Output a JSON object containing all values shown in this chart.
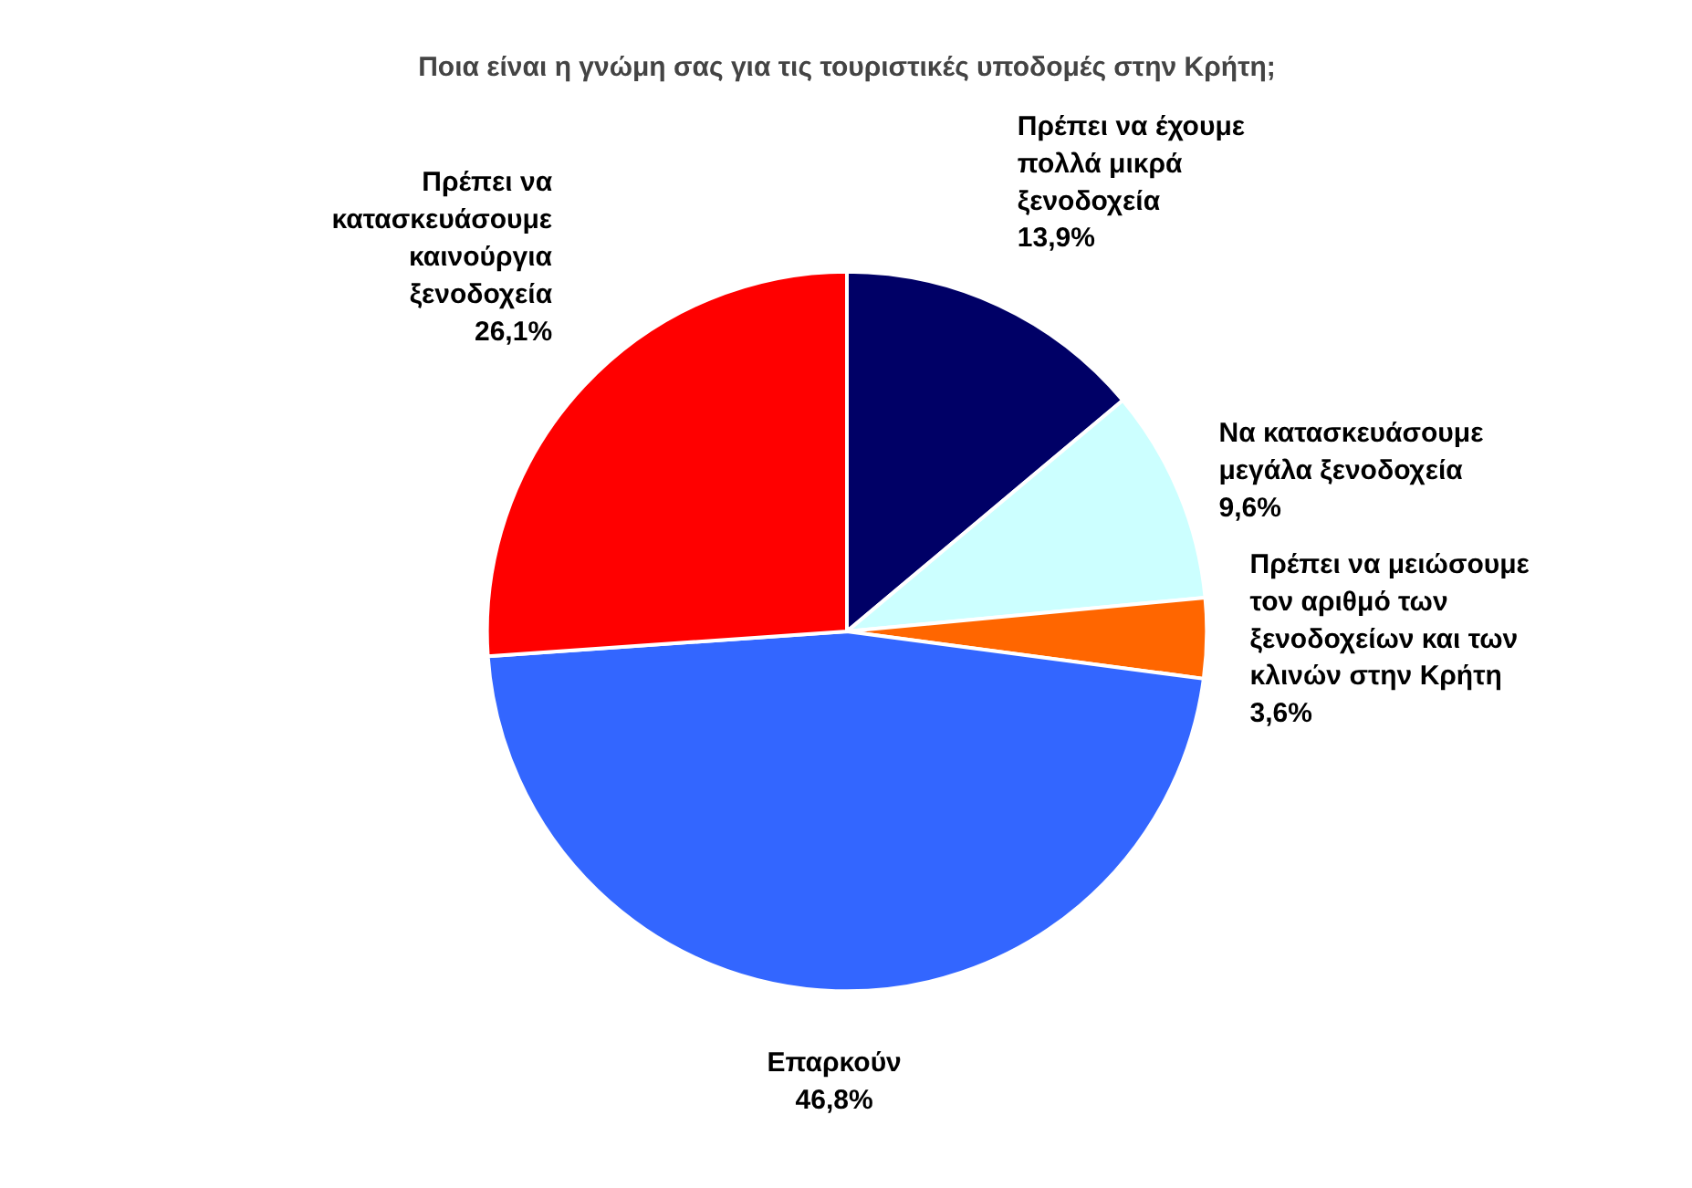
{
  "chart_data": {
    "type": "pie",
    "title": "Ποια είναι η γνώμη σας για τις τουριστικές υποδομές στην Κρήτη;",
    "categories": [
      "Πρέπει να έχουμε πολλά μικρά ξενοδοχεία",
      "Να κατασκευάσουμε μεγάλα ξενοδοχεία",
      "Πρέπει να μειώσουμε τον αριθμό των ξενοδοχείων και των κλινών στην Κρήτη",
      "Επαρκούν",
      "Πρέπει να κατασκευάσουμε καινούργια ξενοδοχεία"
    ],
    "values": [
      13.9,
      9.6,
      3.6,
      46.8,
      26.1
    ],
    "colors": [
      "#000066",
      "#ccffff",
      "#ff6600",
      "#3366ff",
      "#ff0000"
    ],
    "value_labels": [
      "13,9%",
      "9,6%",
      "3,6%",
      "46,8%",
      "26,1%"
    ]
  }
}
